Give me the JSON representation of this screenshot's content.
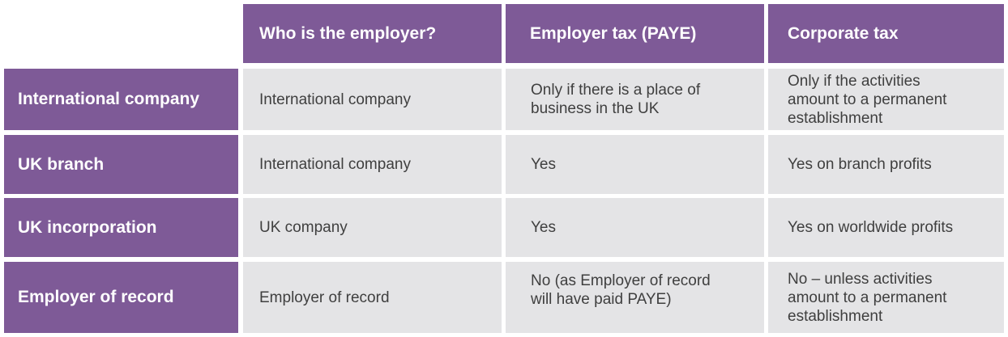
{
  "table": {
    "headers": [
      "Who is the employer?",
      "Employer tax (PAYE)",
      "Corporate tax"
    ],
    "rows": [
      {
        "label": "International company",
        "employer": "International company",
        "paye": "Only if there is a place of\nbusiness in the UK",
        "corporate": "Only if the activities\namount to a permanent\nestablishment"
      },
      {
        "label": "UK branch",
        "employer": "International company",
        "paye": "Yes",
        "corporate": "Yes on branch profits"
      },
      {
        "label": "UK incorporation",
        "employer": "UK company",
        "paye": "Yes",
        "corporate": "Yes on worldwide profits"
      },
      {
        "label": "Employer of record",
        "employer": "Employer of record",
        "paye": "No (as Employer of record\nwill have paid PAYE)",
        "corporate": "No – unless activities\namount to a permanent\nestablishment"
      }
    ]
  },
  "colors": {
    "header_bg": "#7e5a97",
    "cell_bg": "#e4e4e6",
    "header_text": "#ffffff",
    "cell_text": "#3f3f3f"
  }
}
